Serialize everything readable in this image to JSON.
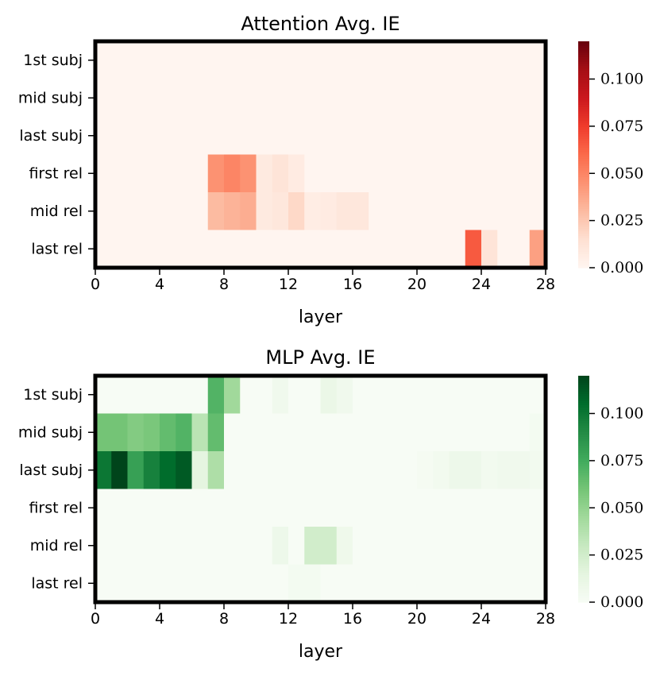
{
  "chart_data": [
    {
      "type": "heatmap",
      "title": "Attention Avg. IE",
      "xlabel": "layer",
      "ylabel": "",
      "rows": [
        "1st subj",
        "mid subj",
        "last subj",
        "first rel",
        "mid rel",
        "last rel"
      ],
      "xlim": [
        0,
        28
      ],
      "xticks": [
        0,
        4,
        8,
        12,
        16,
        20,
        24,
        28
      ],
      "colormap": "Reds",
      "vmin": 0,
      "vmax": 0.12,
      "colorbar_ticks": [
        "0.000",
        "0.025",
        "0.050",
        "0.075",
        "0.100"
      ],
      "values": [
        [
          0,
          0,
          0,
          0,
          0,
          0,
          0,
          0,
          0,
          0,
          0,
          0,
          0,
          0,
          0,
          0,
          0,
          0,
          0,
          0,
          0,
          0,
          0,
          0,
          0,
          0,
          0,
          0
        ],
        [
          0,
          0,
          0,
          0,
          0,
          0,
          0,
          0,
          0,
          0,
          0,
          0,
          0,
          0,
          0,
          0,
          0,
          0,
          0,
          0,
          0,
          0,
          0,
          0,
          0,
          0,
          0,
          0
        ],
        [
          0,
          0,
          0,
          0,
          0,
          0,
          0,
          0,
          0,
          0,
          0,
          0,
          0,
          0,
          0,
          0,
          0,
          0,
          0,
          0,
          0,
          0,
          0,
          0,
          0,
          0,
          0,
          0
        ],
        [
          0,
          0,
          0,
          0,
          0,
          0,
          0,
          0.045,
          0.05,
          0.045,
          0.008,
          0.012,
          0.007,
          0,
          0,
          0,
          0,
          0,
          0,
          0,
          0,
          0,
          0,
          0,
          0,
          0,
          0,
          0
        ],
        [
          0,
          0,
          0,
          0,
          0,
          0,
          0,
          0.03,
          0.033,
          0.035,
          0.008,
          0.01,
          0.018,
          0.006,
          0.007,
          0.01,
          0.01,
          0,
          0,
          0,
          0,
          0,
          0,
          0,
          0,
          0,
          0,
          0
        ],
        [
          0,
          0,
          0,
          0,
          0,
          0,
          0,
          0,
          0,
          0,
          0,
          0,
          0,
          0,
          0,
          0,
          0,
          0,
          0,
          0,
          0,
          0,
          0,
          0.065,
          0.012,
          0,
          0,
          0.04
        ]
      ]
    },
    {
      "type": "heatmap",
      "title": "MLP Avg. IE",
      "xlabel": "layer",
      "ylabel": "",
      "rows": [
        "1st subj",
        "mid subj",
        "last subj",
        "first rel",
        "mid rel",
        "last rel"
      ],
      "xlim": [
        0,
        28
      ],
      "xticks": [
        0,
        4,
        8,
        12,
        16,
        20,
        24,
        28
      ],
      "colormap": "Greens",
      "vmin": 0,
      "vmax": 0.12,
      "colorbar_ticks": [
        "0.000",
        "0.025",
        "0.050",
        "0.075",
        "0.100"
      ],
      "values": [
        [
          0,
          0,
          0,
          0,
          0,
          0,
          0,
          0.07,
          0.045,
          0,
          0,
          0.006,
          0,
          0,
          0.01,
          0.006,
          0,
          0,
          0,
          0,
          0,
          0,
          0,
          0,
          0,
          0,
          0,
          0
        ],
        [
          0.06,
          0.06,
          0.055,
          0.058,
          0.065,
          0.07,
          0.035,
          0.065,
          0,
          0,
          0,
          0,
          0,
          0,
          0,
          0,
          0,
          0,
          0,
          0,
          0,
          0,
          0,
          0,
          0,
          0,
          0,
          0.003
        ],
        [
          0.1,
          0.12,
          0.08,
          0.095,
          0.105,
          0.112,
          0.015,
          0.04,
          0,
          0,
          0,
          0,
          0,
          0,
          0,
          0,
          0,
          0,
          0,
          0,
          0.002,
          0.004,
          0.008,
          0.008,
          0.004,
          0.006,
          0.006,
          0.004
        ],
        [
          0,
          0,
          0,
          0,
          0,
          0,
          0,
          0,
          0,
          0,
          0,
          0,
          0,
          0,
          0,
          0,
          0,
          0,
          0,
          0,
          0,
          0,
          0,
          0,
          0,
          0,
          0,
          0
        ],
        [
          0,
          0,
          0,
          0,
          0,
          0,
          0,
          0,
          0,
          0,
          0,
          0.008,
          0,
          0.025,
          0.025,
          0.007,
          0,
          0,
          0,
          0,
          0,
          0,
          0,
          0,
          0,
          0,
          0,
          0
        ],
        [
          0,
          0,
          0,
          0,
          0,
          0,
          0,
          0,
          0,
          0,
          0,
          0,
          0.003,
          0.003,
          0,
          0,
          0,
          0,
          0,
          0,
          0,
          0,
          0,
          0,
          0,
          0,
          0,
          0
        ]
      ]
    }
  ]
}
